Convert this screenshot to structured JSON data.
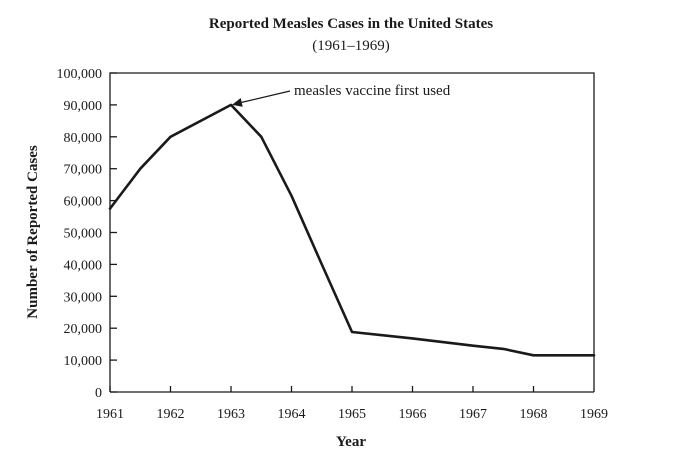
{
  "chart_data": {
    "type": "line",
    "title": "Reported Measles Cases in the United States",
    "subtitle": "(1961–1969)",
    "xlabel": "Year",
    "ylabel": "Number of Reported Cases",
    "xlim": [
      1961,
      1969
    ],
    "ylim": [
      0,
      100000
    ],
    "x_ticks": [
      "1961",
      "1962",
      "1963",
      "1964",
      "1965",
      "1966",
      "1967",
      "1968",
      "1969"
    ],
    "y_ticks": [
      "0",
      "10,000",
      "20,000",
      "30,000",
      "40,000",
      "50,000",
      "60,000",
      "70,000",
      "80,000",
      "90,000",
      "100,000"
    ],
    "grid": false,
    "series": [
      {
        "points": [
          [
            1961,
            57500
          ],
          [
            1961.5,
            70000
          ],
          [
            1962,
            80000
          ],
          [
            1963,
            90000
          ],
          [
            1963.5,
            80000
          ],
          [
            1964,
            61500
          ],
          [
            1964.5,
            40000
          ],
          [
            1965,
            18800
          ],
          [
            1966,
            16800
          ],
          [
            1967,
            14500
          ],
          [
            1967.5,
            13500
          ],
          [
            1968,
            11500
          ],
          [
            1969,
            11500
          ]
        ]
      }
    ],
    "annotations": [
      {
        "text": "measles vaccine first used",
        "target": [
          1963,
          90000
        ]
      }
    ]
  }
}
